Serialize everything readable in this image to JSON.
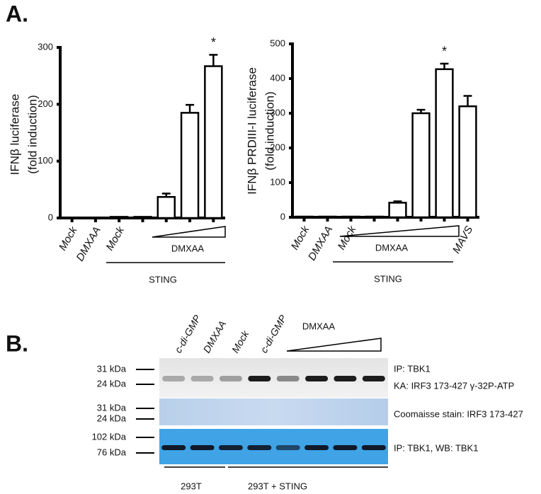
{
  "panel_labels": [
    "A.",
    "B."
  ],
  "chart_data": [
    {
      "type": "bar",
      "ylabel": [
        "IFNβ luciferase",
        "(fold induction)"
      ],
      "categories": [
        "Mock",
        "DMXAA",
        "Mock",
        null,
        null,
        null,
        null
      ],
      "values": [
        0,
        0,
        2,
        2,
        37,
        185,
        267
      ],
      "errors": [
        0,
        0,
        0,
        0,
        6,
        14,
        20
      ],
      "ylim": [
        0,
        300
      ],
      "yticks": [
        0,
        100,
        200,
        300
      ],
      "color": "#ffffff",
      "annotation": "*",
      "group_label": "DMXAA",
      "bracket_label": "STING"
    },
    {
      "type": "bar",
      "ylabel": [
        "IFNβ PRDIII-I luciferase",
        "(fold induction)"
      ],
      "categories": [
        "Mock",
        "DMXAA",
        "Mock",
        null,
        null,
        null,
        null,
        "MAVS"
      ],
      "values": [
        2,
        2,
        2,
        2,
        42,
        300,
        427,
        320
      ],
      "errors": [
        0,
        0,
        0,
        0,
        4,
        10,
        16,
        30
      ],
      "ylim": [
        0,
        500
      ],
      "yticks": [
        0,
        100,
        200,
        300,
        400,
        500
      ],
      "color": "#ffffff",
      "annotation": "*",
      "group_label": "DMXAA",
      "bracket_label": "STING"
    }
  ],
  "blot": {
    "lanes": [
      "c-di-GMP",
      "DMXAA",
      "Mock",
      "c-di-GMP"
    ],
    "dose_label": "DMXAA",
    "markers": [
      [
        "31 kDa",
        "24 kDa"
      ],
      [
        "31 kDa",
        "24 kDa"
      ],
      [
        "102 kDa",
        "76 kDa"
      ]
    ],
    "panel_texts": [
      [
        "IP: TBK1",
        "KA: IRF3 173-427 γ-32P-ATP"
      ],
      [
        "Coomaisse stain: IRF3 173-427"
      ],
      [
        "IP: TBK1, WB: TBK1"
      ]
    ],
    "groups": [
      "293T",
      "293T + STING"
    ]
  }
}
